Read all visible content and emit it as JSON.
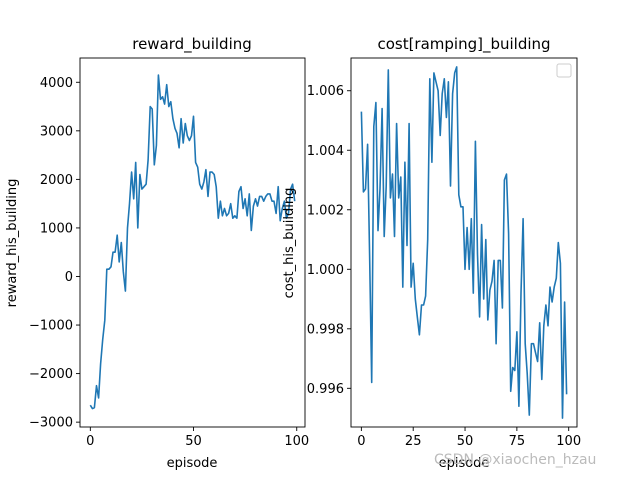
{
  "watermark": "CSDN @xiaochen_hzau",
  "colors": {
    "line": "#1f77b4",
    "axes": "#000000",
    "background": "#ffffff"
  },
  "chart_data": [
    {
      "type": "line",
      "title": "reward_building",
      "xlabel": "episode",
      "ylabel": "reward_his_building",
      "xlim": [
        -5,
        104
      ],
      "ylim": [
        -3100,
        4500
      ],
      "xticks": [
        0,
        50,
        100
      ],
      "xtick_labels": [
        "0",
        "50",
        "100"
      ],
      "yticks": [
        -3000,
        -2000,
        -1000,
        0,
        1000,
        2000,
        3000,
        4000
      ],
      "ytick_labels": [
        "−3000",
        "−2000",
        "−1000",
        "0",
        "1000",
        "2000",
        "3000",
        "4000"
      ],
      "legend": "none",
      "grid": false,
      "series": [
        {
          "x": [
            0,
            1,
            2,
            3,
            4,
            5,
            6,
            7,
            8,
            9,
            10,
            11,
            12,
            13,
            14,
            15,
            16,
            17,
            18,
            19,
            20,
            21,
            22,
            23,
            24,
            25,
            26,
            27,
            28,
            29,
            30,
            31,
            32,
            33,
            34,
            35,
            36,
            37,
            38,
            39,
            40,
            41,
            42,
            43,
            44,
            45,
            46,
            47,
            48,
            49,
            50,
            51,
            52,
            53,
            54,
            55,
            56,
            57,
            58,
            59,
            60,
            61,
            62,
            63,
            64,
            65,
            66,
            67,
            68,
            69,
            70,
            71,
            72,
            73,
            74,
            75,
            76,
            77,
            78,
            79,
            80,
            81,
            82,
            83,
            84,
            85,
            86,
            87,
            88,
            89,
            90,
            91,
            92,
            93,
            94,
            95,
            96,
            97,
            98,
            99
          ],
          "y": [
            -2650,
            -2720,
            -2700,
            -2250,
            -2500,
            -1800,
            -1300,
            -900,
            150,
            150,
            200,
            500,
            500,
            850,
            300,
            700,
            100,
            -300,
            1000,
            1500,
            2150,
            1600,
            2350,
            1000,
            2100,
            1800,
            1850,
            1900,
            2400,
            3500,
            3450,
            2300,
            2700,
            4150,
            3650,
            3700,
            3550,
            3950,
            3500,
            3600,
            3250,
            3050,
            2950,
            2650,
            3250,
            2750,
            3150,
            2900,
            2800,
            2900,
            3300,
            2350,
            2250,
            1900,
            1800,
            1950,
            2200,
            1650,
            2150,
            2150,
            2100,
            1850,
            1200,
            1550,
            1250,
            1400,
            1250,
            1300,
            1500,
            1200,
            1250,
            1200,
            1750,
            1850,
            1400,
            1600,
            1250,
            1700,
            950,
            1450,
            1600,
            1450,
            1650,
            1650,
            1550,
            1650,
            1700,
            1700,
            1550,
            1550,
            1300,
            1850,
            1150,
            1400,
            1550,
            1200,
            1300,
            1800,
            1900,
            1550
          ]
        }
      ]
    },
    {
      "type": "line",
      "title": "cost[ramping]_building",
      "xlabel": "episode",
      "ylabel": "cost_his_building",
      "xlim": [
        -5,
        104
      ],
      "ylim": [
        0.9947,
        1.0071
      ],
      "xticks": [
        0,
        25,
        50,
        75,
        100
      ],
      "xtick_labels": [
        "0",
        "25",
        "50",
        "75",
        "100"
      ],
      "yticks": [
        0.996,
        0.998,
        1.0,
        1.002,
        1.004,
        1.006
      ],
      "ytick_labels": [
        "0.996",
        "0.998",
        "1.000",
        "1.002",
        "1.004",
        "1.006"
      ],
      "legend": "top-right (empty box)",
      "grid": false,
      "series": [
        {
          "x": [
            0,
            1,
            2,
            3,
            4,
            5,
            6,
            7,
            8,
            9,
            10,
            11,
            12,
            13,
            14,
            15,
            16,
            17,
            18,
            19,
            20,
            21,
            22,
            23,
            24,
            25,
            26,
            27,
            28,
            29,
            30,
            31,
            32,
            33,
            34,
            35,
            36,
            37,
            38,
            39,
            40,
            41,
            42,
            43,
            44,
            45,
            46,
            47,
            48,
            49,
            50,
            51,
            52,
            53,
            54,
            55,
            56,
            57,
            58,
            59,
            60,
            61,
            62,
            63,
            64,
            65,
            66,
            67,
            68,
            69,
            70,
            71,
            72,
            73,
            74,
            75,
            76,
            77,
            78,
            79,
            80,
            81,
            82,
            83,
            84,
            85,
            86,
            87,
            88,
            89,
            90,
            91,
            92,
            93,
            94,
            95,
            96,
            97,
            98,
            99
          ],
          "y": [
            1.0053,
            1.0026,
            1.0027,
            1.0042,
            1.0003,
            0.9962,
            1.0048,
            1.0056,
            1.0013,
            1.0027,
            1.0054,
            1.0011,
            1.0028,
            1.0067,
            1.0024,
            1.0032,
            1.0011,
            1.0049,
            1.0024,
            1.0031,
            0.9994,
            1.0036,
            1.0008,
            1.0049,
            0.9994,
            1.0002,
            0.999,
            0.9984,
            0.9978,
            0.9988,
            0.9988,
            0.9991,
            1.001,
            1.0064,
            1.0036,
            1.0066,
            1.0063,
            1.006,
            1.0045,
            1.0059,
            1.0064,
            1.0051,
            1.0063,
            1.0028,
            1.0059,
            1.0066,
            1.0068,
            1.0025,
            1.0021,
            1.0021,
            1.0,
            1.0014,
            1.0,
            1.0017,
            0.9992,
            1.0043,
            1.0005,
            0.9984,
            1.0015,
            0.999,
            1.001,
            0.9983,
            0.9993,
            0.9996,
            1.0003,
            0.9975,
            1.0003,
            1.0003,
            0.9987,
            1.003,
            1.0032,
            1.0012,
            0.9959,
            0.9967,
            0.9966,
            0.9979,
            0.9954,
            0.9992,
            1.0017,
            0.9975,
            0.9965,
            0.9951,
            0.9975,
            0.9975,
            0.9972,
            0.9969,
            0.9982,
            0.9963,
            0.9981,
            0.9988,
            0.9981,
            0.9994,
            0.9989,
            0.9994,
            0.9997,
            1.0009,
            1.0002,
            0.995,
            0.9989,
            0.9958
          ]
        }
      ]
    }
  ]
}
